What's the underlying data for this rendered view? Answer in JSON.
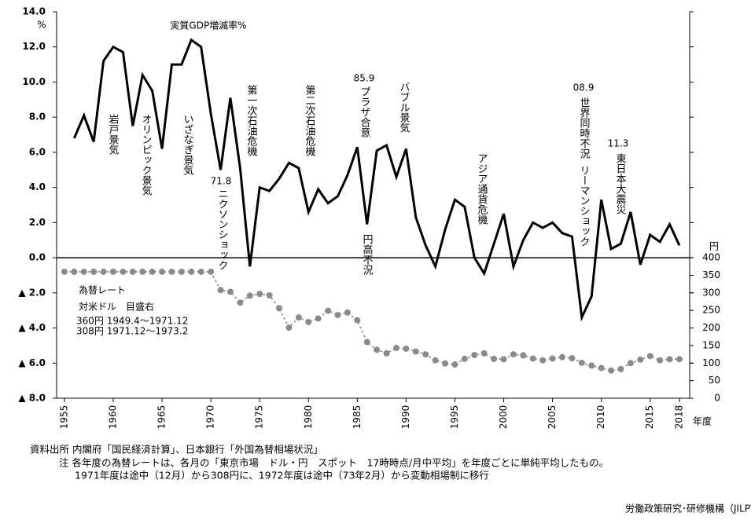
{
  "chart_data": {
    "type": "line",
    "xlim": [
      1954.2,
      2019.05
    ],
    "xticks": [
      1955,
      1960,
      1965,
      1970,
      1975,
      1980,
      1985,
      1990,
      1995,
      2000,
      2005,
      2010,
      2015,
      2018
    ],
    "x_label": "年度",
    "ylim": [
      -8,
      14
    ],
    "yticks": [
      {
        "value": 14,
        "label": "14.0"
      },
      {
        "value": 12,
        "label": "12.0"
      },
      {
        "value": 10,
        "label": "10.0"
      },
      {
        "value": 8,
        "label": "8.0"
      },
      {
        "value": 6,
        "label": "6.0"
      },
      {
        "value": 4,
        "label": "4.0"
      },
      {
        "value": 2,
        "label": "2.0"
      },
      {
        "value": 0,
        "label": "0.0"
      },
      {
        "value": -2,
        "label": "▲ 2.0"
      },
      {
        "value": -4,
        "label": "▲ 4.0"
      },
      {
        "value": -6,
        "label": "▲ 6.0"
      },
      {
        "value": -8,
        "label": "▲ 8.0"
      }
    ],
    "y_label": "%",
    "y2lim": [
      0,
      1100
    ],
    "y2ticks": [
      0,
      50,
      100,
      150,
      200,
      250,
      300,
      350,
      400
    ],
    "y2_label": "円",
    "grid": false,
    "series": [
      {
        "name": "実質GDP増減率%",
        "color": "#000000",
        "x": [
          1956,
          1957,
          1958,
          1959,
          1960,
          1961,
          1962,
          1963,
          1964,
          1965,
          1966,
          1967,
          1968,
          1969,
          1970,
          1971,
          1972,
          1973,
          1974,
          1975,
          1976,
          1977,
          1978,
          1979,
          1980,
          1981,
          1982,
          1983,
          1984,
          1985,
          1986,
          1987,
          1988,
          1989,
          1990,
          1991,
          1992,
          1993,
          1994,
          1995,
          1996,
          1997,
          1998,
          1999,
          2000,
          2001,
          2002,
          2003,
          2004,
          2005,
          2006,
          2007,
          2008,
          2009,
          2010,
          2011,
          2012,
          2013,
          2014,
          2015,
          2016,
          2017,
          2018
        ],
        "values": [
          6.8,
          8.1,
          6.6,
          11.2,
          12.0,
          11.7,
          7.5,
          10.4,
          9.5,
          6.2,
          11.0,
          11.0,
          12.4,
          12.0,
          8.2,
          5.0,
          9.1,
          5.1,
          -0.5,
          4.0,
          3.8,
          4.5,
          5.4,
          5.1,
          2.6,
          3.9,
          3.1,
          3.5,
          4.7,
          6.3,
          1.9,
          6.1,
          6.4,
          4.6,
          6.2,
          2.3,
          0.7,
          -0.5,
          1.6,
          3.3,
          2.9,
          0.0,
          -0.9,
          0.8,
          2.5,
          -0.5,
          1.0,
          2.0,
          1.7,
          2.0,
          1.4,
          1.2,
          -3.4,
          -2.2,
          3.3,
          0.5,
          0.8,
          2.6,
          -0.4,
          1.3,
          0.9,
          1.9,
          0.7
        ]
      },
      {
        "name": "為替レート",
        "color": "#8a8a8a",
        "axis": "y2",
        "x": [
          1955,
          1956,
          1957,
          1958,
          1959,
          1960,
          1961,
          1962,
          1963,
          1964,
          1965,
          1966,
          1967,
          1968,
          1969,
          1970,
          1971,
          1972,
          1973,
          1974,
          1975,
          1976,
          1977,
          1978,
          1979,
          1980,
          1981,
          1982,
          1983,
          1984,
          1985,
          1986,
          1987,
          1988,
          1989,
          1990,
          1991,
          1992,
          1993,
          1994,
          1995,
          1996,
          1997,
          1998,
          1999,
          2000,
          2001,
          2002,
          2003,
          2004,
          2005,
          2006,
          2007,
          2008,
          2009,
          2010,
          2011,
          2012,
          2013,
          2014,
          2015,
          2016,
          2017,
          2018
        ],
        "values": [
          360,
          360,
          360,
          360,
          360,
          360,
          360,
          360,
          360,
          360,
          360,
          360,
          360,
          360,
          360,
          360,
          308,
          303,
          272,
          292,
          297,
          293,
          256,
          201,
          230,
          217,
          227,
          249,
          237,
          244,
          222,
          160,
          138,
          128,
          143,
          141,
          133,
          125,
          108,
          99,
          96,
          112,
          123,
          128,
          112,
          111,
          125,
          122,
          113,
          108,
          113,
          117,
          114,
          101,
          93,
          86,
          79,
          83,
          100,
          110,
          120,
          108,
          111,
          111
        ]
      }
    ],
    "annotations": [
      "岩戸景気",
      "オリンピック景気",
      "いざなぎ景気",
      "71.8",
      "ニクソンショック",
      "第一次石油危機",
      "第二次石油危機",
      "85.9",
      "プラザ合意",
      "円高不況",
      "バブル景気",
      "アジア通貨危機",
      "08.9",
      "世界同時不況",
      "リーマンショック",
      "11.3",
      "東日本大震災"
    ],
    "rate_notes": [
      "対米ドル　目盛右",
      "360円 1949.4～1971.12",
      "308円 1971.12～1973.2"
    ],
    "footnotes": [
      "資料出所 内閣府「国民経済計算」、日本銀行「外国為替相場状況」",
      "注 各年度の為替レートは、各月の「東京市場　ドル・円　スポット　17時時点/月中平均」を年度ごとに単純平均したもの。",
      "1971年度は途中（12月）から308円に、1972年度は途中（73年2月）から変動相場制に移行"
    ],
    "source": "労働政策研究･研修機構（JILPT）"
  }
}
